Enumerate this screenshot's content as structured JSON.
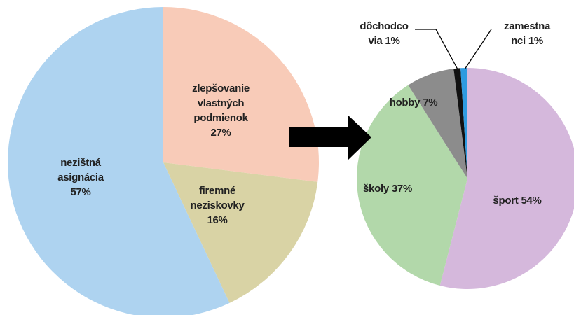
{
  "chart_data": [
    {
      "type": "pie",
      "categories": [
        [
          "zlepšovanie",
          "vlastných",
          "podmienok"
        ],
        [
          "firemné",
          "neziskovky"
        ],
        [
          "nezištná",
          "asignácia"
        ]
      ],
      "values": [
        27,
        16,
        57
      ],
      "value_labels": [
        "27%",
        "16%",
        "57%"
      ],
      "colors": [
        "#f8cbb8",
        "#d9d3a5",
        "#aed3f0"
      ]
    },
    {
      "type": "pie",
      "categories": [
        [
          "šport"
        ],
        [
          "školy"
        ],
        [
          "hobby"
        ],
        [
          "dôchodco",
          "via"
        ],
        [
          "zamestna",
          "nci"
        ]
      ],
      "values": [
        54,
        37,
        7,
        1,
        1
      ],
      "value_labels": [
        "54%",
        "37%",
        "7%",
        "1%",
        "1%"
      ],
      "colors": [
        "#d5b8dc",
        "#b2d8aa",
        "#8c8c8c",
        "#111111",
        "#2e9be0"
      ]
    }
  ]
}
